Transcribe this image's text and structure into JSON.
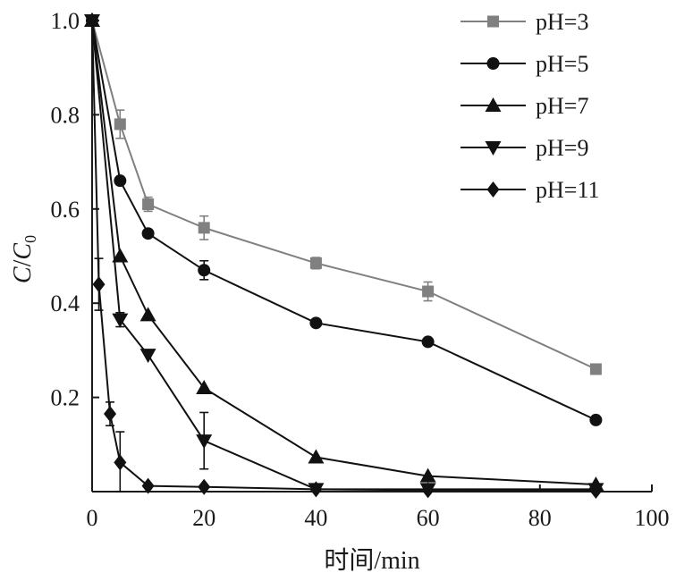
{
  "chart_data": {
    "type": "line",
    "xlabel": "时间/min",
    "ylabel_main": "C",
    "ylabel_slash": "/",
    "ylabel_denom": "C",
    "ylabel_sub": "0",
    "xlim": [
      0,
      100
    ],
    "ylim": [
      0,
      1.0
    ],
    "x_ticks": [
      0,
      20,
      40,
      60,
      80,
      100
    ],
    "x_tick_labels": [
      "0",
      "20",
      "40",
      "60",
      "80",
      "100"
    ],
    "y_ticks": [
      0.2,
      0.4,
      0.6,
      0.8,
      1.0
    ],
    "y_tick_labels": [
      "0.2",
      "0.4",
      "0.6",
      "0.8",
      "1.0"
    ],
    "grid": false,
    "legend_position": "top-right",
    "series": [
      {
        "name": "pH=3",
        "marker": "square",
        "color": "#808080",
        "x": [
          0,
          5,
          10,
          20,
          40,
          60,
          90
        ],
        "y": [
          1.0,
          0.78,
          0.61,
          0.56,
          0.485,
          0.425,
          0.26
        ],
        "err": [
          0,
          0.03,
          0.015,
          0.025,
          0.012,
          0.02,
          0
        ]
      },
      {
        "name": "pH=5",
        "marker": "circle",
        "color": "#111111",
        "x": [
          0,
          5,
          10,
          20,
          40,
          60,
          90
        ],
        "y": [
          1.0,
          0.66,
          0.548,
          0.47,
          0.358,
          0.318,
          0.152
        ],
        "err": [
          0,
          0,
          0,
          0.02,
          0,
          0,
          0
        ]
      },
      {
        "name": "pH=7",
        "marker": "triangle-up",
        "color": "#111111",
        "x": [
          0,
          5,
          10,
          20,
          40,
          60,
          90
        ],
        "y": [
          1.0,
          0.5,
          0.375,
          0.22,
          0.073,
          0.033,
          0.015
        ],
        "err": [
          0,
          0,
          0,
          0,
          0,
          0,
          0
        ]
      },
      {
        "name": "pH=9",
        "marker": "triangle-down",
        "color": "#111111",
        "x": [
          0,
          5,
          10,
          20,
          40,
          60,
          90
        ],
        "y": [
          1.0,
          0.365,
          0.29,
          0.108,
          0.005,
          0.005,
          0.005
        ],
        "err": [
          0,
          0.015,
          0,
          0.06,
          0,
          0,
          0
        ]
      },
      {
        "name": "pH=11",
        "marker": "diamond",
        "color": "#111111",
        "x": [
          0,
          1.2,
          3.2,
          5,
          10,
          20,
          40,
          60,
          90
        ],
        "y": [
          1.0,
          0.44,
          0.165,
          0.062,
          0.012,
          0.01,
          0.005,
          0.003,
          0.002
        ],
        "err": [
          0,
          0.055,
          0.025,
          0.065,
          0,
          0,
          0,
          0,
          0
        ]
      }
    ]
  }
}
